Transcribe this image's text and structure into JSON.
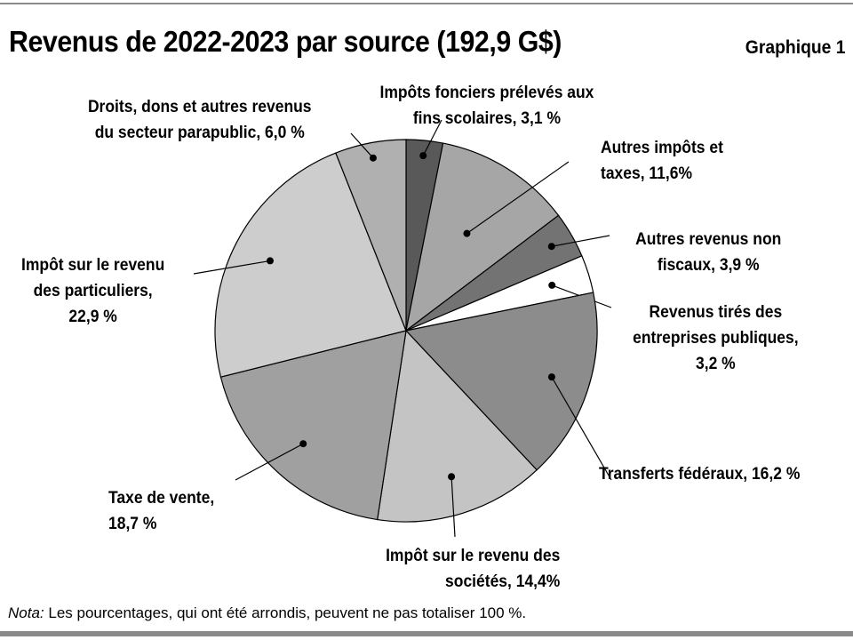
{
  "header": {
    "title": "Revenus de 2022-2023 par source (192,9 G$)",
    "figure_label": "Graphique 1"
  },
  "note": {
    "prefix": "Nota:",
    "text": "Les pourcentages, qui ont été arrondis, peuvent ne pas totaliser 100 %."
  },
  "chart_data": {
    "type": "pie",
    "title": "Revenus de 2022-2023 par source (192,9 G$)",
    "total": "192,9 G$",
    "start": "12 o'clock, clockwise",
    "slices": [
      {
        "label": "Impôts fonciers prélevés aux fins scolaires",
        "value": 3.1,
        "color": "#595959",
        "label_lines": [
          "Impôts fonciers prélevés aux",
          "fins scolaires, 3,1 %"
        ]
      },
      {
        "label": "Autres impôts et taxes",
        "value": 11.6,
        "color": "#a6a6a6",
        "label_lines": [
          "Autres impôts et",
          "taxes, 11,6%"
        ]
      },
      {
        "label": "Autres revenus non fiscaux",
        "value": 3.9,
        "color": "#737373",
        "label_lines": [
          "Autres revenus non",
          "fiscaux, 3,9 %"
        ]
      },
      {
        "label": "Revenus tirés des entreprises publiques",
        "value": 3.2,
        "color": "#ffffff",
        "label_lines": [
          "Revenus tirés des",
          "entreprises publiques,",
          "3,2 %"
        ]
      },
      {
        "label": "Transferts fédéraux",
        "value": 16.2,
        "color": "#8c8c8c",
        "label_lines": [
          "Transferts fédéraux, 16,2 %"
        ]
      },
      {
        "label": "Impôt sur le revenu des sociétés",
        "value": 14.4,
        "color": "#c4c4c4",
        "label_lines": [
          "Impôt sur le revenu des",
          "sociétés, 14,4%"
        ]
      },
      {
        "label": "Taxe de vente",
        "value": 18.7,
        "color": "#a0a0a0",
        "label_lines": [
          "Taxe de vente,",
          "18,7 %"
        ]
      },
      {
        "label": "Impôt sur le revenu des particuliers",
        "value": 22.9,
        "color": "#cdcdcd",
        "label_lines": [
          "Impôt sur le revenu",
          "des particuliers,",
          "22,9 %"
        ]
      },
      {
        "label": "Droits, dons et autres revenus du secteur parapublic",
        "value": 6.0,
        "color": "#b0b0b0",
        "label_lines": [
          "Droits, dons et autres revenus",
          "du secteur parapublic, 6,0 %"
        ]
      }
    ]
  }
}
